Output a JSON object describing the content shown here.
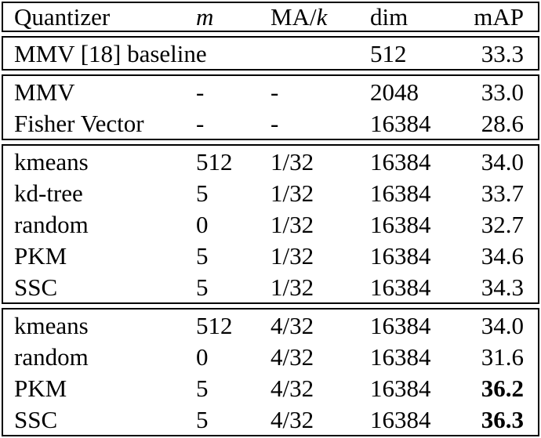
{
  "header": {
    "quantizer": "Quantizer",
    "m": "m",
    "ma_prefix": "MA/",
    "ma_k": "k",
    "dim": "dim",
    "map": "mAP"
  },
  "sections": [
    {
      "rows": [
        [
          "MMV [18] baseline",
          "",
          "",
          "512",
          "33.3"
        ]
      ]
    },
    {
      "rows": [
        [
          "MMV",
          "-",
          "-",
          "2048",
          "33.0"
        ],
        [
          "Fisher Vector",
          "-",
          "-",
          "16384",
          "28.6"
        ]
      ]
    },
    {
      "rows": [
        [
          "kmeans",
          "512",
          "1/32",
          "16384",
          "34.0"
        ],
        [
          "kd-tree",
          "5",
          "1/32",
          "16384",
          "33.7"
        ],
        [
          "random",
          "0",
          "1/32",
          "16384",
          "32.7"
        ],
        [
          "PKM",
          "5",
          "1/32",
          "16384",
          "34.6"
        ],
        [
          "SSC",
          "5",
          "1/32",
          "16384",
          "34.3"
        ]
      ]
    },
    {
      "rows": [
        [
          "kmeans",
          "512",
          "4/32",
          "16384",
          "34.0"
        ],
        [
          "random",
          "0",
          "4/32",
          "16384",
          "31.6"
        ],
        [
          "PKM",
          "5",
          "4/32",
          "16384",
          "36.2"
        ],
        [
          "SSC",
          "5",
          "4/32",
          "16384",
          "36.3"
        ]
      ]
    }
  ],
  "colors": {
    "text": "#000000",
    "border": "#000000",
    "background": "#ffffff"
  }
}
